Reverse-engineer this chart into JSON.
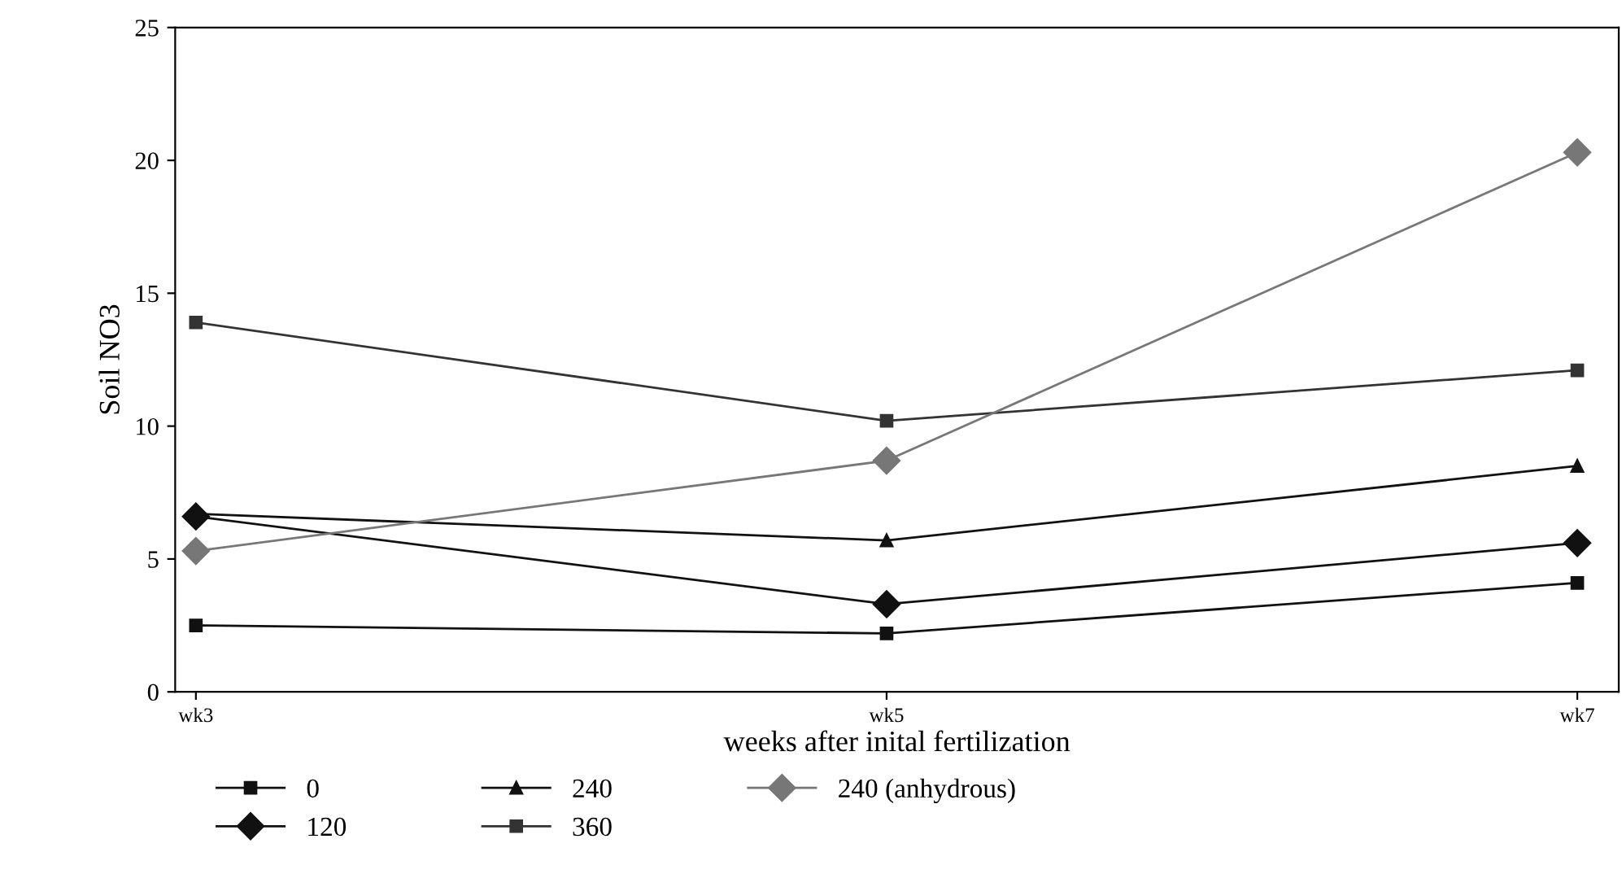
{
  "chart_data": {
    "type": "line",
    "xlabel": "weeks after inital fertilization",
    "ylabel": "Soil NO3",
    "categories": [
      "wk3",
      "wk5",
      "wk7"
    ],
    "ylim": [
      0,
      25
    ],
    "yticks": [
      0,
      5,
      10,
      15,
      20,
      25
    ],
    "grid": false,
    "legend": "bottom",
    "series": [
      {
        "name": "0",
        "color": "#111111",
        "marker": "square",
        "values": [
          2.5,
          2.2,
          4.1
        ]
      },
      {
        "name": "120",
        "color": "#111111",
        "marker": "diamond",
        "values": [
          6.6,
          3.3,
          5.6
        ]
      },
      {
        "name": "240",
        "color": "#111111",
        "marker": "triangle",
        "values": [
          6.7,
          5.7,
          8.5
        ]
      },
      {
        "name": "360",
        "color": "#333333",
        "marker": "square",
        "values": [
          13.9,
          10.2,
          12.1
        ]
      },
      {
        "name": "240 (anhydrous)",
        "color": "#777777",
        "marker": "diamond",
        "values": [
          5.3,
          8.7,
          20.3
        ]
      }
    ]
  }
}
